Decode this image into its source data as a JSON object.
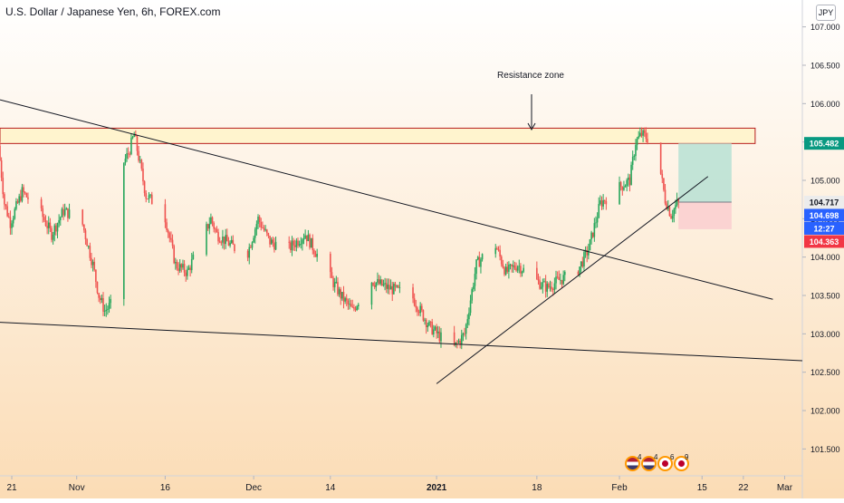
{
  "header": {
    "title": "U.S. Dollar / Japanese Yen, 6h, FOREX.com",
    "currency_badge": "JPY"
  },
  "colors": {
    "up": "#26a65b",
    "down": "#ef5350",
    "bg_top": "#ffffff",
    "bg_bottom": "#fbdcb5",
    "zone_stroke": "#b71c1c",
    "zone_fill": "#fff3c4",
    "target_fill": "#b7e1d4",
    "stop_fill": "#fbcfd0",
    "trend_line": "#131722",
    "label_green": "#089981",
    "label_blue": "#2962ff",
    "label_red": "#f23645",
    "label_gray": "#ececec"
  },
  "chart_data": {
    "type": "candlestick",
    "symbol": "USDJPY",
    "timeframe": "6h",
    "x_range": [
      "2020-10-19",
      "2021-03-04"
    ],
    "ylim": [
      101.15,
      107.35
    ],
    "x_ticks": [
      {
        "date": "2020-10-21",
        "label": "21"
      },
      {
        "date": "2020-11-01",
        "label": "Nov"
      },
      {
        "date": "2020-11-16",
        "label": "16"
      },
      {
        "date": "2020-12-01",
        "label": "Dec"
      },
      {
        "date": "2020-12-14",
        "label": "14"
      },
      {
        "date": "2021-01-01",
        "label": "2021"
      },
      {
        "date": "2021-01-18",
        "label": "18"
      },
      {
        "date": "2021-02-01",
        "label": "Feb"
      },
      {
        "date": "2021-02-15",
        "label": "15"
      },
      {
        "date": "2021-02-22",
        "label": "22"
      },
      {
        "date": "2021-03-01",
        "label": "Mar"
      }
    ],
    "y_ticks": [
      101.5,
      102.0,
      102.5,
      103.0,
      103.5,
      104.0,
      104.5,
      105.0,
      105.5,
      106.0,
      106.5,
      107.0
    ],
    "price_path": [
      [
        "2020-10-19",
        105.45
      ],
      [
        "2020-10-20",
        104.7
      ],
      [
        "2020-10-21",
        104.45
      ],
      [
        "2020-10-23",
        104.85
      ],
      [
        "2020-10-26",
        104.6
      ],
      [
        "2020-10-28",
        104.3
      ],
      [
        "2020-10-30",
        104.6
      ],
      [
        "2020-11-02",
        104.5
      ],
      [
        "2020-11-04",
        103.9
      ],
      [
        "2020-11-05",
        103.5
      ],
      [
        "2020-11-06",
        103.3
      ],
      [
        "2020-11-08",
        103.45
      ],
      [
        "2020-11-09",
        105.2
      ],
      [
        "2020-11-10",
        105.35
      ],
      [
        "2020-11-11",
        105.6
      ],
      [
        "2020-11-12",
        105.2
      ],
      [
        "2020-11-13",
        104.8
      ],
      [
        "2020-11-16",
        104.6
      ],
      [
        "2020-11-18",
        103.9
      ],
      [
        "2020-11-20",
        103.8
      ],
      [
        "2020-11-24",
        104.5
      ],
      [
        "2020-11-25",
        104.3
      ],
      [
        "2020-11-30",
        104.0
      ],
      [
        "2020-12-02",
        104.5
      ],
      [
        "2020-12-04",
        104.2
      ],
      [
        "2020-12-07",
        104.1
      ],
      [
        "2020-12-10",
        104.3
      ],
      [
        "2020-12-13",
        103.9
      ],
      [
        "2020-12-16",
        103.5
      ],
      [
        "2020-12-18",
        103.3
      ],
      [
        "2020-12-21",
        103.7
      ],
      [
        "2020-12-24",
        103.6
      ],
      [
        "2020-12-28",
        103.5
      ],
      [
        "2020-12-31",
        103.1
      ],
      [
        "2021-01-04",
        102.8
      ],
      [
        "2021-01-06",
        103.0
      ],
      [
        "2021-01-08",
        103.9
      ],
      [
        "2021-01-11",
        104.2
      ],
      [
        "2021-01-13",
        103.8
      ],
      [
        "2021-01-15",
        103.9
      ],
      [
        "2021-01-18",
        103.7
      ],
      [
        "2021-01-20",
        103.6
      ],
      [
        "2021-01-22",
        103.7
      ],
      [
        "2021-01-25",
        103.8
      ],
      [
        "2021-01-27",
        104.1
      ],
      [
        "2021-01-29",
        104.7
      ],
      [
        "2021-02-01",
        104.9
      ],
      [
        "2021-02-03",
        105.0
      ],
      [
        "2021-02-04",
        105.5
      ],
      [
        "2021-02-05",
        105.6
      ],
      [
        "2021-02-06",
        105.55
      ],
      [
        "2021-02-07",
        105.35
      ],
      [
        "2021-02-08",
        105.2
      ],
      [
        "2021-02-09",
        104.75
      ],
      [
        "2021-02-10",
        104.55
      ],
      [
        "2021-02-11",
        104.7
      ]
    ],
    "annotations": {
      "resistance_label": "Resistance zone",
      "resistance_zone": {
        "from": "2020-10-19",
        "to": "2021-02-24",
        "top": 105.68,
        "bottom": 105.48
      },
      "trend_lines": [
        {
          "name": "descending",
          "points": [
            [
              "2020-10-19",
              106.05
            ],
            [
              "2021-02-27",
              103.45
            ]
          ]
        },
        {
          "name": "lower",
          "points": [
            [
              "2020-10-19",
              103.15
            ],
            [
              "2021-03-04",
              102.65
            ]
          ]
        },
        {
          "name": "rising",
          "points": [
            [
              "2021-01-01",
              102.35
            ],
            [
              "2021-02-16",
              105.05
            ]
          ]
        }
      ],
      "position": {
        "from": "2021-02-11",
        "to": "2021-02-20",
        "entry": 104.717,
        "target": 105.482,
        "stop": 104.363
      }
    },
    "price_labels": [
      {
        "value": 105.482,
        "label": "105.482",
        "color": "green"
      },
      {
        "value": 104.717,
        "label": "104.717",
        "color": "gray"
      },
      {
        "value": 104.698,
        "label": "104.698",
        "color": "blue"
      },
      {
        "value": 104.58,
        "label": "12:27",
        "color": "blue"
      },
      {
        "value": 104.363,
        "label": "104.363",
        "color": "red"
      }
    ]
  },
  "events": [
    {
      "icon": "us-flag-icon",
      "count": "4"
    },
    {
      "icon": "us-flag-icon",
      "count": "4"
    },
    {
      "icon": "japan-flag-icon",
      "count": "6"
    },
    {
      "icon": "japan-flag-icon",
      "count": "9"
    }
  ]
}
